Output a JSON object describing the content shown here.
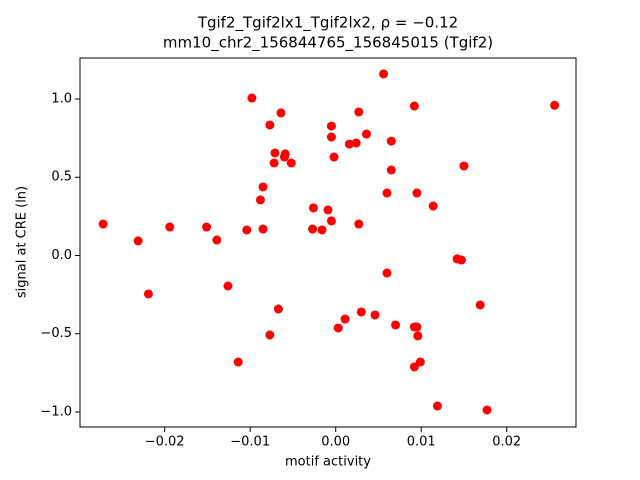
{
  "chart_data": {
    "type": "scatter",
    "title": "Tgif2_Tgif2lx1_Tgif2lx2, ρ = −0.12",
    "subtitle": "mm10_chr2_156844765_156845015 (Tgif2)",
    "x_label": "motif activity",
    "y_label": "signal at CRE (ln)",
    "color": "#ff0000",
    "x": [
      0.0056,
      -0.0098,
      0.0256,
      0.0092,
      0.0027,
      -0.0064,
      -0.0077,
      -0.0005,
      0.0036,
      -0.0005,
      0.0065,
      0.0016,
      0.0024,
      -0.0071,
      -0.0059,
      -0.006,
      -0.0002,
      -0.0072,
      -0.0052,
      0.015,
      0.0065,
      -0.0085,
      0.006,
      0.0095,
      -0.0088,
      0.0114,
      -0.0026,
      -0.0009,
      -0.0005,
      0.0027,
      -0.0272,
      -0.0151,
      -0.0194,
      -0.0104,
      -0.0085,
      -0.0027,
      -0.0016,
      -0.0139,
      -0.0231,
      0.0142,
      0.0147,
      0.006,
      -0.0126,
      -0.0219,
      0.0169,
      -0.0067,
      0.003,
      0.0046,
      0.0011,
      0.007,
      0.0092,
      0.0003,
      0.0095,
      0.0096,
      -0.0077,
      -0.0114,
      0.0099,
      0.0092,
      0.0119,
      0.0177
    ],
    "values": [
      1.16,
      1.006,
      0.96,
      0.955,
      0.917,
      0.911,
      0.834,
      0.827,
      0.776,
      0.757,
      0.731,
      0.712,
      0.719,
      0.655,
      0.649,
      0.629,
      0.629,
      0.591,
      0.591,
      0.572,
      0.546,
      0.438,
      0.399,
      0.399,
      0.355,
      0.316,
      0.304,
      0.291,
      0.221,
      0.201,
      0.201,
      0.182,
      0.182,
      0.163,
      0.169,
      0.169,
      0.163,
      0.099,
      0.093,
      -0.022,
      -0.029,
      -0.112,
      -0.195,
      -0.246,
      -0.316,
      -0.342,
      -0.361,
      -0.38,
      -0.406,
      -0.444,
      -0.457,
      -0.463,
      -0.457,
      -0.514,
      -0.508,
      -0.681,
      -0.681,
      -0.712,
      -0.962,
      -0.987
    ],
    "xlim": [
      -0.0299,
      0.0281
    ],
    "ylim": [
      -1.096,
      1.262
    ],
    "xticks": [
      {
        "value": -0.02,
        "label": "−0.02"
      },
      {
        "value": -0.01,
        "label": "−0.01"
      },
      {
        "value": 0,
        "label": "0.00"
      },
      0.01,
      0.02
    ],
    "yticks": [
      {
        "value": -1,
        "label": "−1.0"
      },
      {
        "value": -0.5,
        "label": "−0.5"
      },
      {
        "value": 0,
        "label": "0.0"
      },
      0.5,
      {
        "value": 1,
        "label": "1.0"
      }
    ]
  }
}
